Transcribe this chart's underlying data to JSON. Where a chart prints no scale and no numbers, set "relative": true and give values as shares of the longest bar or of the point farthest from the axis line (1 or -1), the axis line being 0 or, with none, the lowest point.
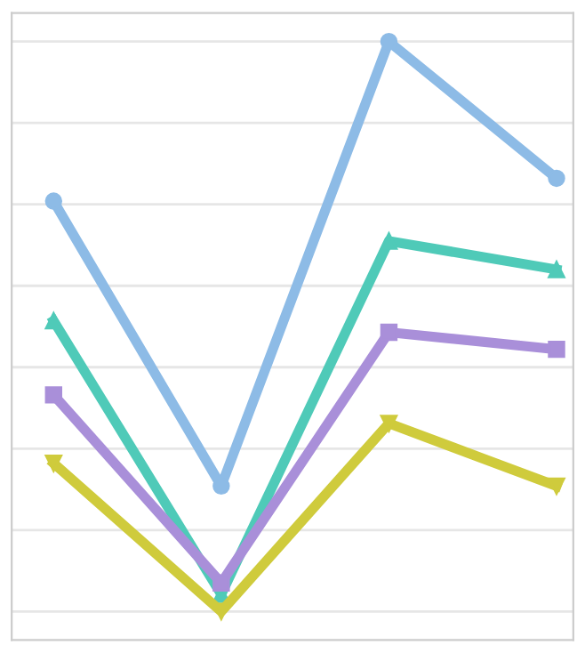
{
  "chart_data": {
    "type": "line",
    "relative": true,
    "categories": [
      null,
      null,
      null,
      null
    ],
    "series": [
      {
        "color": "#8dbbe6",
        "values": [
          0.72,
          0.22,
          1,
          0.76
        ],
        "marker": "circle"
      },
      {
        "color": "#4fcab8",
        "values": [
          0.51,
          0.03,
          0.65,
          0.6
        ],
        "marker": "triangle"
      },
      {
        "color": "#a98fd9",
        "values": [
          0.38,
          0.05,
          0.49,
          0.46
        ],
        "marker": "square"
      },
      {
        "color": "#cfcb3c",
        "values": [
          0.26,
          0,
          0.33,
          0.22
        ],
        "marker": "triangle_down"
      }
    ],
    "grid": "y",
    "legend": false,
    "line_style": "solid"
  }
}
